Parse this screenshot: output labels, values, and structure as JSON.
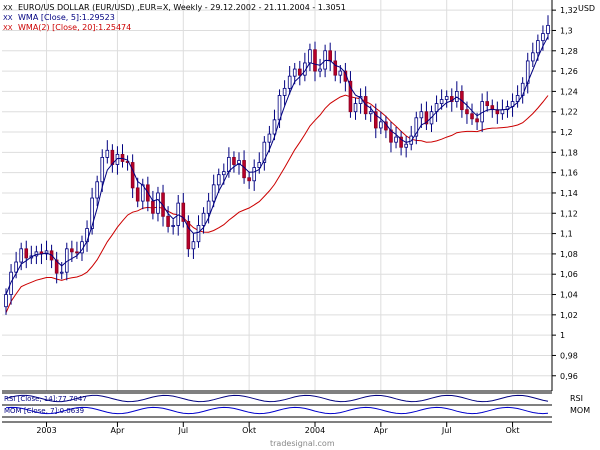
{
  "chart_data": {
    "type": "candlestick",
    "title": "EURO/US DOLLAR (EUR/USD) ,EUR=X, Weekly - 29.12.2002 - 21.11.2004 - 1.3051",
    "legend": [
      {
        "label": "WMA [Close, 5]:1.29523",
        "color": "#000080"
      },
      {
        "label": "WMA(2) [Close, 20]:1.25474",
        "color": "#cc0000"
      }
    ],
    "currency_label": "USD",
    "y_ticks": [
      "1,32",
      "1,3",
      "1,28",
      "1,26",
      "1,24",
      "1,22",
      "1,2",
      "1,18",
      "1,16",
      "1,14",
      "1,12",
      "1,1",
      "1,08",
      "1,06",
      "1,04",
      "1,02",
      "1",
      "0,98",
      "0,96"
    ],
    "x_ticks": [
      "2003",
      "Apr",
      "Jul",
      "Okt",
      "2004",
      "Apr",
      "Jul",
      "Okt"
    ],
    "ylim": [
      0.945,
      1.33
    ],
    "close": [
      1.04,
      1.062,
      1.072,
      1.085,
      1.076,
      1.078,
      1.082,
      1.08,
      1.083,
      1.074,
      1.061,
      1.062,
      1.085,
      1.082,
      1.081,
      1.092,
      1.105,
      1.135,
      1.151,
      1.175,
      1.182,
      1.168,
      1.178,
      1.171,
      1.17,
      1.145,
      1.132,
      1.148,
      1.132,
      1.12,
      1.14,
      1.117,
      1.107,
      1.108,
      1.13,
      1.112,
      1.085,
      1.092,
      1.108,
      1.12,
      1.132,
      1.148,
      1.158,
      1.161,
      1.175,
      1.168,
      1.172,
      1.155,
      1.152,
      1.165,
      1.17,
      1.19,
      1.198,
      1.212,
      1.236,
      1.243,
      1.255,
      1.262,
      1.256,
      1.268,
      1.281,
      1.26,
      1.262,
      1.28,
      1.27,
      1.256,
      1.26,
      1.25,
      1.22,
      1.228,
      1.235,
      1.218,
      1.22,
      1.204,
      1.21,
      1.202,
      1.19,
      1.195,
      1.185,
      1.188,
      1.196,
      1.214,
      1.22,
      1.208,
      1.22,
      1.228,
      1.232,
      1.235,
      1.23,
      1.24,
      1.222,
      1.218,
      1.213,
      1.21,
      1.23,
      1.226,
      1.222,
      1.218,
      1.222,
      1.225,
      1.23,
      1.236,
      1.248,
      1.27,
      1.278,
      1.29,
      1.297,
      1.305
    ],
    "wma5_final": 1.29523,
    "wma20_final": 1.25474,
    "sub_panels": [
      {
        "label": "RSI",
        "legend": "RSI [Close, 14]:77.7047"
      },
      {
        "label": "MOM",
        "legend": "MOM [Close, 7]:0.0639"
      }
    ],
    "watermark": "tradesignal.com"
  }
}
